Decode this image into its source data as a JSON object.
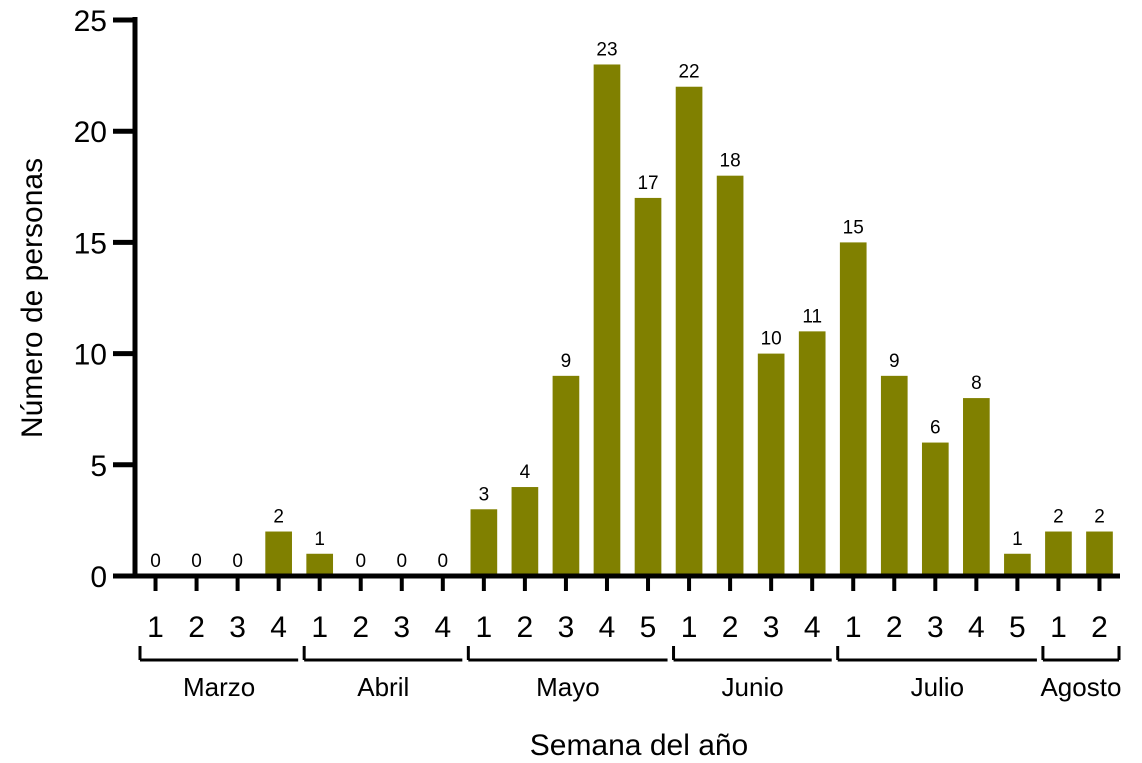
{
  "chart_data": {
    "type": "bar",
    "xlabel": "Semana del año",
    "ylabel": "Número de personas",
    "ylim": [
      0,
      25
    ],
    "yticks": [
      "0",
      "5",
      "10",
      "15",
      "20",
      "25"
    ],
    "grid": false,
    "legend": "none",
    "bar_color": "#808000",
    "months": [
      {
        "name": "Marzo",
        "weeks": [
          "1",
          "2",
          "3",
          "4"
        ]
      },
      {
        "name": "Abril",
        "weeks": [
          "1",
          "2",
          "3",
          "4"
        ]
      },
      {
        "name": "Mayo",
        "weeks": [
          "1",
          "2",
          "3",
          "4",
          "5"
        ]
      },
      {
        "name": "Junio",
        "weeks": [
          "1",
          "2",
          "3",
          "4"
        ]
      },
      {
        "name": "Julio",
        "weeks": [
          "1",
          "2",
          "3",
          "4",
          "5"
        ]
      },
      {
        "name": "Agosto",
        "weeks": [
          "1",
          "2"
        ]
      }
    ],
    "values": [
      0,
      0,
      0,
      2,
      1,
      0,
      0,
      0,
      3,
      4,
      9,
      23,
      17,
      22,
      18,
      10,
      11,
      15,
      9,
      6,
      8,
      1,
      2,
      2
    ]
  }
}
